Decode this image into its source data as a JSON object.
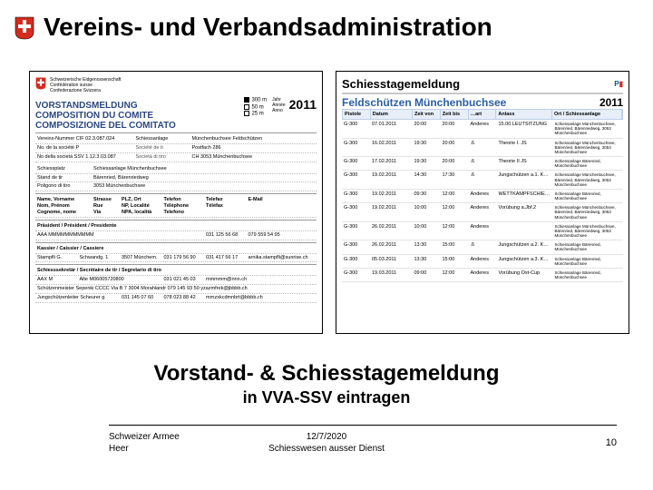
{
  "title": "Vereins- und Verbandsadministration",
  "subtitle1": "Vorstand- & Schiesstagemeldung",
  "subtitle2": "in VVA-SSV eintragen",
  "footer": {
    "left1": "Schweizer Armee",
    "left2": "Heer",
    "center1": "12/7/2020",
    "center2": "Schiesswesen ausser Dienst",
    "page": "10"
  },
  "shield": {
    "red": "#d52b1e",
    "white": "#ffffff",
    "stroke": "#000"
  },
  "left_card": {
    "header_lines": [
      "Schweizerische Eidgenossenschaft",
      "Confédération suisse",
      "Confederazione Svizzera"
    ],
    "title_lines": [
      "VORSTANDSMELDUNG",
      "COMPOSITION DU COMITE",
      "COMPOSIZIONE DEL COMITATO"
    ],
    "checks": [
      {
        "label": "300 m",
        "checked": true
      },
      {
        "label": "50 m",
        "checked": false
      },
      {
        "label": "25 m",
        "checked": false
      }
    ],
    "year_label": "Jahr\nAnnée\nAnno",
    "year": "2011",
    "society": {
      "verein_nr_label": "Vereins-Nummer  CIF  02.3.087.024",
      "no_label": "No. de la société  P",
      "no_text": "No della società   SSV 1.12.3.03.087",
      "schiessanlage_label": "Schiessanlage",
      "schiessanlage_value": "Münchenbuchsee Feldschützen",
      "postfach": "Postfach 286",
      "ort": "CH 3053 Münchenbuchsee",
      "schiessplatz_label": "Schiessplatz",
      "schiessplatz_value": "Schiessanlage Münchenbuchsee",
      "stand_label": "Stand de tir",
      "stand_value": "Bärenried, Bärenriedweg",
      "poligono_label": "Poligono di tiro",
      "poligono_value": "3053 Münchenbuchsee"
    },
    "board_headers": [
      "Name, Vorname\nNom, Prénom\nCognome, nome",
      "Strasse\nRue\nVia",
      "PLZ, Ort\nNP, Localité\nNPA, località",
      "Telefon\nTéléphone\nTelefono",
      "Telefax\nTéléfax",
      "E-Mail"
    ],
    "president_label": "Präsident / Président / Presidente",
    "board_sample": {
      "name": "AAA  MMMMMMMMMMM",
      "tel1": "031 125 56 68",
      "tel2": "079 559 54 95"
    },
    "kassier_label": "Kassier / Caissier / Cassiere",
    "kassier_row": {
      "name": "Stampfli G.",
      "addr": "Schwandg. 1",
      "ort": "3507 Münchem.",
      "tel1": "031 179 56 90",
      "tel2": "031 417 56 17",
      "mail": "arnika.stampfli@sunrise.ch"
    },
    "schiesssekr_label": "Schiesssekretär / Secrétaire de tir / Segretario di tiro",
    "schiesssekr_row": {
      "name": "AAX  M",
      "addr": "Alte M06005720800",
      "tel": "031 021 45 03",
      "mail": "mmmmm@nnn.ch"
    },
    "schutzenm_label": "Schützenmeister  Sepenki  CCCC  Via B 7 3004 Morahlandr  079 145 93 50  yzazmfrek@jbbbb.ch",
    "jungsch_label": "Jungschützenleiter  Scheurer g.",
    "jungsch_row": {
      "tel1": "031 145 07 60",
      "tel2": "078 023 88 42",
      "mail": "mrnzxkcdmnbrt@bbbb.ch"
    }
  },
  "right_card": {
    "top_title": "Schiesstagemeldung",
    "club": "Feldschützen Münchenbuchsee",
    "year": "2011",
    "columns": [
      "Pistole",
      "Datum",
      "Zeit von",
      "Zeit bis",
      "…art",
      "Anlass",
      "Ort / Schiessanlage"
    ],
    "location_block": "Schiessanlage Münchenbuchsee,\nBärenried, Bärenriedweg, 3053\nMünchenbuchsee",
    "alt_location": "Schiessanlage Bärenried,\nMünchenbuchsee",
    "rows": [
      {
        "p": "G-300",
        "d": "07.01.2011",
        "v": "20:00",
        "b": "20:00",
        "a": "Anderes",
        "e": "15.00 LEUTSITZUNG"
      },
      {
        "p": "G-300",
        "d": "16.02.2011",
        "v": "19:30",
        "b": "20:00",
        "a": ".6",
        "e": "Theorie I. JS"
      },
      {
        "p": "G-300",
        "d": "17.02.2011",
        "v": "19:30",
        "b": "20:00",
        "a": ".6",
        "e": "Theorie II JS"
      },
      {
        "p": "G-300",
        "d": "19.02.2011",
        "v": "14:30",
        "b": "17:30",
        "a": ".6",
        "e": "Jungschützen a.1. Kurstag"
      },
      {
        "p": "G-300",
        "d": "19.02.2011",
        "v": "09:30",
        "b": "12:00",
        "a": "Anderes",
        "e": "WETTKAMPFSCHIESSEN"
      },
      {
        "p": "G-300",
        "d": "19.02.2011",
        "v": "10:00",
        "b": "12:00",
        "a": "Anderes",
        "e": "Vorübung a.Jbf.2"
      },
      {
        "p": "G-300",
        "d": "26.02.2011",
        "v": "10:00",
        "b": "12:00",
        "a": "Anderes",
        "e": ""
      },
      {
        "p": "G-300",
        "d": "26.02.2011",
        "v": "13:30",
        "b": "15:00",
        "a": ".6",
        "e": "Jungschützen a.2. Kurstag"
      },
      {
        "p": "G-300",
        "d": "05.03.2011",
        "v": "13:30",
        "b": "15:00",
        "a": "Anderes",
        "e": "Jungschützen a.3. Kurstag"
      },
      {
        "p": "G-300",
        "d": "19.03.2011",
        "v": "09:00",
        "b": "12:00",
        "a": "Anderes",
        "e": "Vorübung Ost-Cup"
      }
    ]
  },
  "colors": {
    "blue_title": "#2b4780",
    "blue_header_bg": "#e7eef8",
    "blue_header_border": "#bcd0e8"
  }
}
